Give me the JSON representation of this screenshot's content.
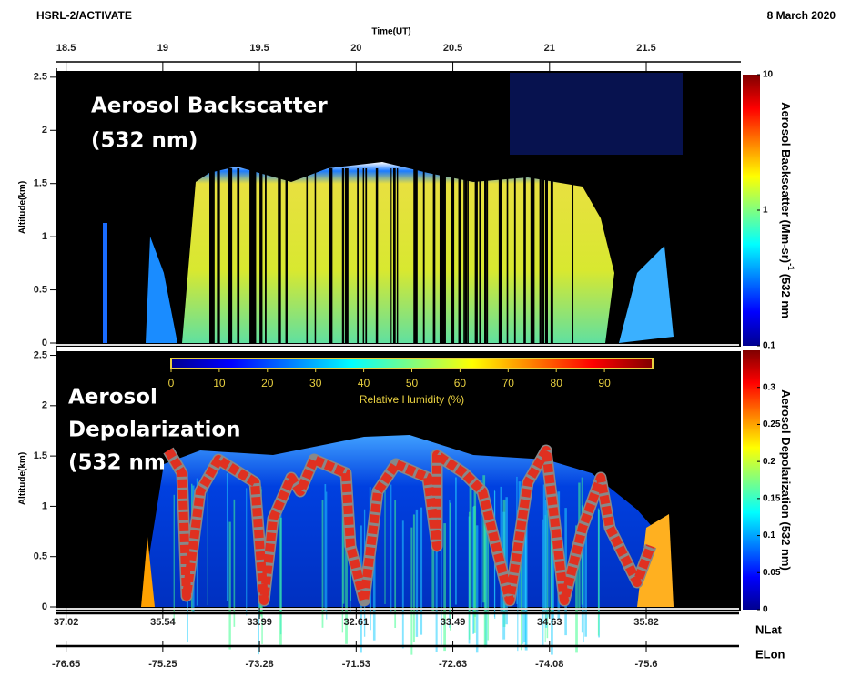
{
  "header": {
    "title": "HSRL-2/ACTIVATE",
    "date": "8 March 2020"
  },
  "chart_data": [
    {
      "type": "curtain",
      "annotation": [
        "Aerosol Backscatter",
        "(532 nm)"
      ],
      "xlabel": "Time(UT)",
      "xlim": [
        18.45,
        21.98
      ],
      "xticks": [
        18.5,
        19,
        19.5,
        20,
        20.5,
        21,
        21.5
      ],
      "ylabel": "Altitude(km)",
      "ylim": [
        0,
        2.55
      ],
      "yticks": [
        0,
        0.5,
        1,
        1.5,
        2,
        2.5
      ],
      "colorbar": {
        "label": "Aerosol Backscatter (Mm-sr)",
        "label_sup": "-1",
        "label_end": " (532 nm",
        "scale": "log",
        "lim": [
          0.1,
          10
        ],
        "ticks": [
          0.1,
          1,
          10
        ]
      }
    },
    {
      "type": "curtain",
      "annotation": [
        "Aerosol",
        "Depolarization",
        "(532 nm"
      ],
      "ylabel": "Altitude(km)",
      "ylim": [
        0,
        2.55
      ],
      "yticks": [
        0,
        0.5,
        1,
        1.5,
        2,
        2.5
      ],
      "colorbar": {
        "label": "Aerosol Depolarization (532 nm)",
        "scale": "linear",
        "lim": [
          0,
          0.35
        ],
        "ticks": [
          0,
          0.05,
          0.1,
          0.15,
          0.2,
          0.25,
          0.3
        ]
      },
      "rh_colorbar": {
        "label": "Relative Humidity (%)",
        "lim": [
          0,
          100
        ],
        "ticks": [
          0,
          10,
          20,
          30,
          40,
          50,
          60,
          70,
          80,
          90
        ]
      }
    }
  ],
  "nav_axes": {
    "nlat": {
      "label": "NLat",
      "values": [
        37.02,
        35.54,
        33.99,
        32.61,
        33.49,
        34.63,
        35.82
      ]
    },
    "elon": {
      "label": "ELon",
      "values": [
        -76.65,
        -75.25,
        -73.28,
        -71.53,
        -72.63,
        -74.08,
        -75.6
      ]
    }
  }
}
